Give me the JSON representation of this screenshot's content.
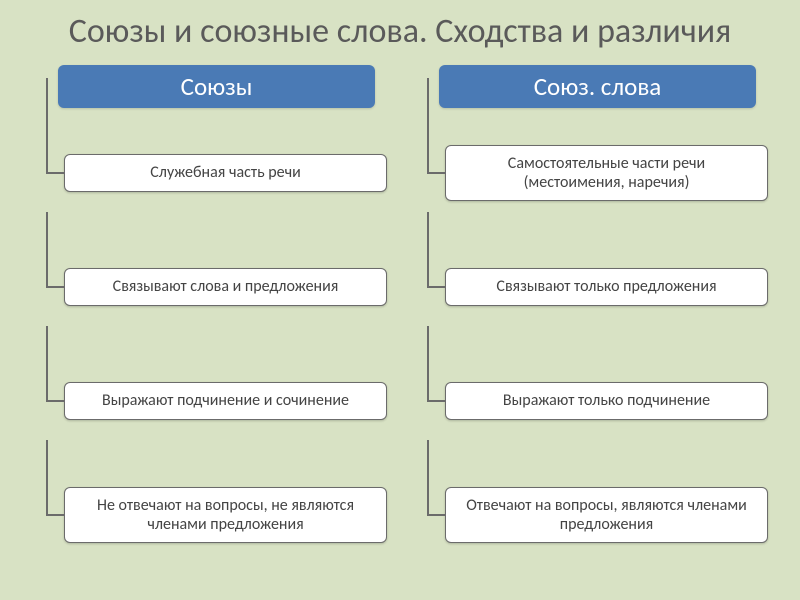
{
  "slide": {
    "background_color": "#d8e2c4",
    "title": "Союзы и союзные слова. Сходства и различия",
    "title_fontsize": 34,
    "title_color": "#5a5a5a"
  },
  "diagram": {
    "header_bg": "#4a7ab5",
    "header_text_color": "#ffffff",
    "header_fontsize": 25,
    "box_bg": "#ffffff",
    "box_border_color": "#6b6b6b",
    "box_text_color": "#444444",
    "box_fontsize": 16,
    "connector_color": "#6b6b6b",
    "columns": [
      {
        "header": "Союзы",
        "items": [
          "Служебная часть речи",
          "Связывают слова и предложения",
          "Выражают подчинение и сочинение",
          "Не отвечают на вопросы, не являются членами предложения"
        ]
      },
      {
        "header": "Союз. слова",
        "items": [
          "Самостоятельные части речи (местоимения, наречия)",
          "Связывают только предложения",
          "Выражают только подчинение",
          "Отвечают на вопросы, являются членами предложения"
        ]
      }
    ]
  }
}
